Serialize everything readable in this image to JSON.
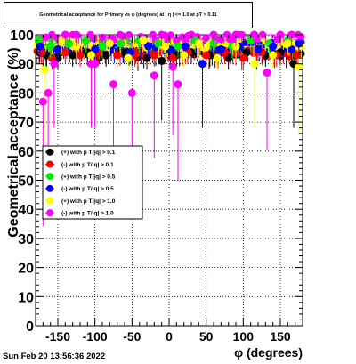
{
  "chart_data": {
    "type": "scatter",
    "title": "Geometrical acceptance for Primary vs φ (degrees) at | η | <= 1.0 at pT > 0.11",
    "xlabel": "φ (degrees)",
    "ylabel": "Geometrical acceptance (%)",
    "xlim": [
      -180,
      180
    ],
    "ylim": [
      0,
      100
    ],
    "x_ticks": [
      -150,
      -100,
      -50,
      0,
      50,
      100,
      150
    ],
    "y_ticks": [
      0,
      10,
      20,
      30,
      40,
      50,
      60,
      70,
      80,
      90,
      100
    ],
    "grid": true,
    "legend_position": "left-center",
    "series": [
      {
        "name": "(+) with p T/|q| > 0.1",
        "color": "#000000",
        "typical": 93.5,
        "points": [
          [
            -175,
            94
          ],
          [
            -165,
            93
          ],
          [
            -150,
            92
          ],
          [
            -130,
            93
          ],
          [
            -110,
            94
          ],
          [
            -85,
            93
          ],
          [
            -60,
            94
          ],
          [
            -30,
            92
          ],
          [
            -10,
            91
          ],
          [
            10,
            93
          ],
          [
            30,
            94
          ],
          [
            55,
            93
          ],
          [
            80,
            92
          ],
          [
            105,
            94
          ],
          [
            130,
            93
          ],
          [
            150,
            94
          ],
          [
            168,
            90
          ]
        ]
      },
      {
        "name": "(-) with p T/|q| > 0.1",
        "color": "#ff0000",
        "typical": 94,
        "points": [
          [
            -172,
            94
          ],
          [
            -158,
            92
          ],
          [
            -140,
            94
          ],
          [
            -120,
            93
          ],
          [
            -95,
            94
          ],
          [
            -70,
            93
          ],
          [
            -45,
            94
          ],
          [
            -20,
            93
          ],
          [
            5,
            92
          ],
          [
            25,
            94
          ],
          [
            50,
            93
          ],
          [
            75,
            94
          ],
          [
            100,
            92
          ],
          [
            125,
            94
          ],
          [
            145,
            93
          ],
          [
            172,
            93
          ]
        ]
      },
      {
        "name": "(+) with p T/|q| > 0.5",
        "color": "#00ee00",
        "typical": 97,
        "points": [
          [
            -176,
            98
          ],
          [
            -160,
            96
          ],
          [
            -135,
            97
          ],
          [
            -112,
            98
          ],
          [
            -90,
            96
          ],
          [
            -65,
            97
          ],
          [
            -40,
            98
          ],
          [
            -15,
            97
          ],
          [
            12,
            96
          ],
          [
            35,
            98
          ],
          [
            60,
            97
          ],
          [
            85,
            96
          ],
          [
            110,
            98
          ],
          [
            135,
            97
          ],
          [
            160,
            98
          ]
        ]
      },
      {
        "name": "(-) with p T/|q| > 0.5",
        "color": "#0000ff",
        "typical": 96,
        "points": [
          [
            -174,
            96
          ],
          [
            -150,
            95
          ],
          [
            -125,
            96
          ],
          [
            -100,
            95
          ],
          [
            -78,
            96
          ],
          [
            -52,
            94
          ],
          [
            -28,
            96
          ],
          [
            0,
            95
          ],
          [
            22,
            96
          ],
          [
            45,
            90
          ],
          [
            70,
            95
          ],
          [
            95,
            96
          ],
          [
            120,
            95
          ],
          [
            140,
            96
          ],
          [
            165,
            95
          ],
          [
            175,
            97
          ]
        ]
      },
      {
        "name": "(+) with p T/|q| > 1.0",
        "color": "#ffff00",
        "typical": 97,
        "points": [
          [
            -168,
            88
          ],
          [
            -145,
            98
          ],
          [
            -125,
            96
          ],
          [
            -105,
            93
          ],
          [
            -80,
            97
          ],
          [
            -55,
            92
          ],
          [
            -35,
            98
          ],
          [
            -5,
            96
          ],
          [
            20,
            93
          ],
          [
            40,
            97
          ],
          [
            65,
            92
          ],
          [
            90,
            96
          ],
          [
            115,
            90
          ],
          [
            140,
            93
          ],
          [
            160,
            97
          ],
          [
            175,
            89
          ]
        ]
      },
      {
        "name": "(-) with p T/|q| > 1.0",
        "color": "#ff00ff",
        "typical": 99.5,
        "points": [
          [
            -170,
            77
          ],
          [
            -163,
            80
          ],
          [
            -155,
            90
          ],
          [
            -140,
            100
          ],
          [
            -125,
            100
          ],
          [
            -105,
            90
          ],
          [
            -100,
            90
          ],
          [
            -75,
            83
          ],
          [
            -50,
            80
          ],
          [
            -20,
            86
          ],
          [
            -10,
            100
          ],
          [
            5,
            89
          ],
          [
            12,
            83
          ],
          [
            30,
            100
          ],
          [
            60,
            100
          ],
          [
            90,
            100
          ],
          [
            115,
            100
          ],
          [
            132,
            87
          ],
          [
            150,
            100
          ],
          [
            165,
            100
          ]
        ]
      }
    ]
  },
  "footer": {
    "date_text": "Sun Feb 20 13:56:36 2022"
  }
}
